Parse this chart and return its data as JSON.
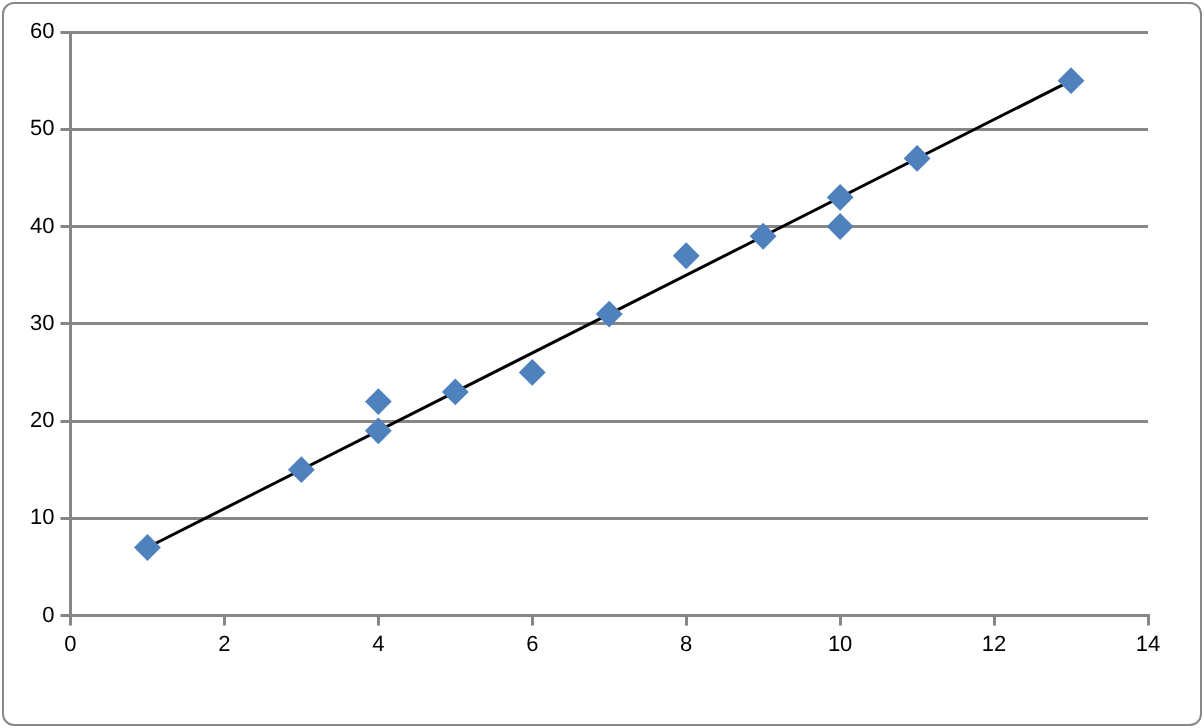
{
  "chart_data": {
    "type": "scatter",
    "xlim": [
      0,
      14
    ],
    "xticks": [
      0,
      2,
      4,
      6,
      8,
      10,
      12,
      14
    ],
    "ylim": [
      0,
      60
    ],
    "yticks": [
      0,
      10,
      20,
      30,
      40,
      50,
      60
    ],
    "grid": "y",
    "legend": false,
    "series": [
      {
        "marker": "diamond",
        "color": "#4f81bd",
        "x": [
          1,
          3,
          4,
          4,
          5,
          6,
          7,
          8,
          9,
          10,
          10,
          11,
          13
        ],
        "values": [
          7,
          15,
          22,
          19,
          23,
          25,
          31,
          37,
          39,
          43,
          40,
          47,
          55
        ]
      },
      {
        "type": "line",
        "color": "#000000",
        "x": [
          1,
          13
        ],
        "values": [
          7,
          55
        ]
      }
    ]
  }
}
